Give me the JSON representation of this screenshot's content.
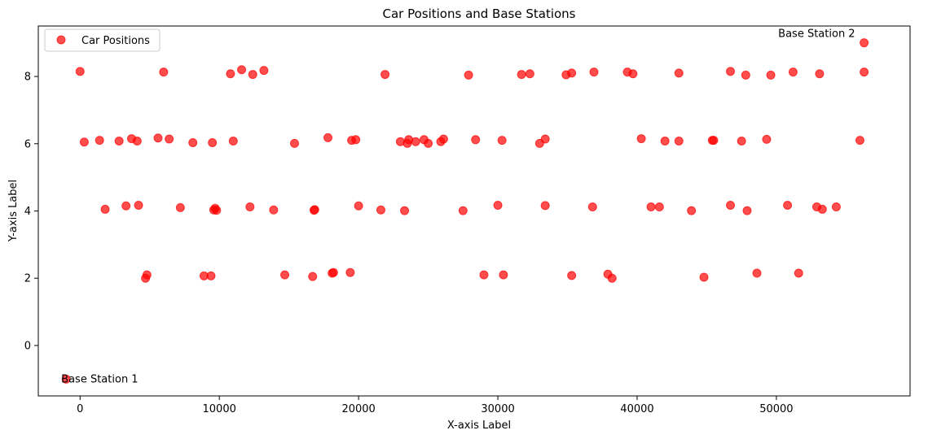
{
  "chart_data": {
    "type": "scatter",
    "title": "Car Positions and Base Stations",
    "xlabel": "X-axis Label",
    "ylabel": "Y-axis Label",
    "xlim": [
      -3000,
      59600
    ],
    "ylim": [
      -1.5,
      9.5
    ],
    "xticks": [
      0,
      10000,
      20000,
      30000,
      40000,
      50000
    ],
    "yticks": [
      0,
      2,
      4,
      6,
      8
    ],
    "grid": false,
    "legend_position": "top-left",
    "series": [
      {
        "name": "Car Positions",
        "color": "#ff0000",
        "alpha": 0.7,
        "points": [
          [
            -1000,
            -1
          ],
          [
            56300,
            9
          ],
          [
            0,
            8.15
          ],
          [
            6000,
            8.13
          ],
          [
            10800,
            8.08
          ],
          [
            11600,
            8.2
          ],
          [
            12400,
            8.06
          ],
          [
            13200,
            8.18
          ],
          [
            21900,
            8.06
          ],
          [
            27900,
            8.04
          ],
          [
            31700,
            8.06
          ],
          [
            32300,
            8.08
          ],
          [
            34900,
            8.05
          ],
          [
            35300,
            8.1
          ],
          [
            36900,
            8.13
          ],
          [
            39300,
            8.13
          ],
          [
            39700,
            8.08
          ],
          [
            43000,
            8.1
          ],
          [
            46700,
            8.15
          ],
          [
            47800,
            8.04
          ],
          [
            49600,
            8.04
          ],
          [
            51200,
            8.13
          ],
          [
            53100,
            8.08
          ],
          [
            56300,
            8.13
          ],
          [
            300,
            6.05
          ],
          [
            1400,
            6.1
          ],
          [
            2800,
            6.08
          ],
          [
            3700,
            6.15
          ],
          [
            4100,
            6.08
          ],
          [
            5600,
            6.17
          ],
          [
            6400,
            6.14
          ],
          [
            8100,
            6.03
          ],
          [
            9500,
            6.03
          ],
          [
            11000,
            6.08
          ],
          [
            15400,
            6.01
          ],
          [
            17800,
            6.18
          ],
          [
            19500,
            6.1
          ],
          [
            19800,
            6.12
          ],
          [
            23000,
            6.06
          ],
          [
            23500,
            6.01
          ],
          [
            23600,
            6.12
          ],
          [
            24100,
            6.06
          ],
          [
            24700,
            6.12
          ],
          [
            25000,
            6.01
          ],
          [
            25900,
            6.06
          ],
          [
            26100,
            6.14
          ],
          [
            28400,
            6.12
          ],
          [
            30300,
            6.1
          ],
          [
            33000,
            6.01
          ],
          [
            33400,
            6.14
          ],
          [
            40300,
            6.15
          ],
          [
            42000,
            6.08
          ],
          [
            43000,
            6.08
          ],
          [
            45400,
            6.1
          ],
          [
            45500,
            6.1
          ],
          [
            47500,
            6.08
          ],
          [
            49300,
            6.13
          ],
          [
            56000,
            6.1
          ],
          [
            1800,
            4.05
          ],
          [
            3300,
            4.15
          ],
          [
            4200,
            4.17
          ],
          [
            7200,
            4.1
          ],
          [
            9600,
            4.03
          ],
          [
            9700,
            4.08
          ],
          [
            9800,
            4.02
          ],
          [
            12200,
            4.12
          ],
          [
            13900,
            4.03
          ],
          [
            16800,
            4.02
          ],
          [
            16850,
            4.04
          ],
          [
            20000,
            4.15
          ],
          [
            21600,
            4.03
          ],
          [
            23300,
            4.01
          ],
          [
            27500,
            4.01
          ],
          [
            30000,
            4.17
          ],
          [
            33400,
            4.16
          ],
          [
            36800,
            4.12
          ],
          [
            41000,
            4.12
          ],
          [
            41600,
            4.12
          ],
          [
            43900,
            4.01
          ],
          [
            46700,
            4.17
          ],
          [
            47900,
            4.01
          ],
          [
            50800,
            4.17
          ],
          [
            52900,
            4.12
          ],
          [
            53300,
            4.05
          ],
          [
            54300,
            4.12
          ],
          [
            4700,
            2.0
          ],
          [
            4800,
            2.1
          ],
          [
            8900,
            2.07
          ],
          [
            9400,
            2.07
          ],
          [
            14700,
            2.1
          ],
          [
            16700,
            2.05
          ],
          [
            18100,
            2.15
          ],
          [
            18200,
            2.17
          ],
          [
            19400,
            2.17
          ],
          [
            29000,
            2.1
          ],
          [
            30400,
            2.1
          ],
          [
            35300,
            2.08
          ],
          [
            37900,
            2.12
          ],
          [
            38200,
            2.0
          ],
          [
            44800,
            2.03
          ],
          [
            48600,
            2.15
          ],
          [
            51600,
            2.15
          ]
        ]
      }
    ],
    "annotations": [
      {
        "text": "Base Station 1",
        "x": -1000,
        "y": -1
      },
      {
        "text": "Base Station 2",
        "x": 56300,
        "y": 9
      }
    ]
  }
}
